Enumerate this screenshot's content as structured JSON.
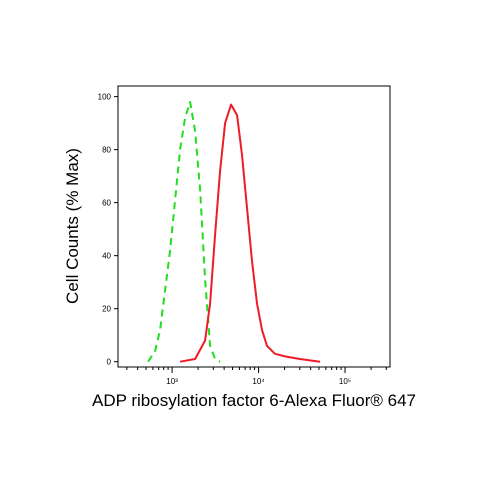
{
  "chart_data": {
    "type": "line",
    "xlabel": "ADP ribosylation factor 6-Alexa Fluor® 647",
    "ylabel": "Cell Counts (% Max)",
    "xscale": "log",
    "xlim": [
      237,
      331000
    ],
    "ylim": [
      -2,
      104
    ],
    "xticks": [
      {
        "value": 1000,
        "label": "10³"
      },
      {
        "value": 10000,
        "label": "10⁴"
      },
      {
        "value": 100000,
        "label": "10⁵"
      }
    ],
    "xminorticks": [
      300,
      400,
      500,
      600,
      700,
      800,
      900,
      2000,
      3000,
      4000,
      5000,
      6000,
      7000,
      8000,
      9000,
      20000,
      30000,
      40000,
      50000,
      60000,
      70000,
      80000,
      90000,
      200000,
      300000
    ],
    "yticks": [
      0,
      20,
      40,
      60,
      80,
      100
    ],
    "series": [
      {
        "color": "#22dd22",
        "dash": true,
        "x": [
          528,
          636,
          727,
          830,
          948,
          1083,
          1237,
          1413,
          1615,
          1845,
          2107,
          2408,
          2750,
          3141,
          3588
        ],
        "values": [
          0,
          4,
          12,
          27,
          42,
          61,
          80,
          92,
          98,
          87,
          65,
          31,
          6,
          1,
          0
        ]
      },
      {
        "color": "#ee1c25",
        "dash": false,
        "x": [
          1237,
          1845,
          2408,
          2750,
          3141,
          3588,
          4098,
          4808,
          5641,
          6443,
          7360,
          8407,
          9600,
          10963,
          12520,
          15430,
          20100,
          30100,
          51500
        ],
        "values": [
          0,
          1,
          8,
          22,
          48,
          72,
          90,
          97,
          93,
          78,
          58,
          38,
          22,
          12,
          6,
          3,
          2,
          1,
          0
        ]
      }
    ]
  }
}
